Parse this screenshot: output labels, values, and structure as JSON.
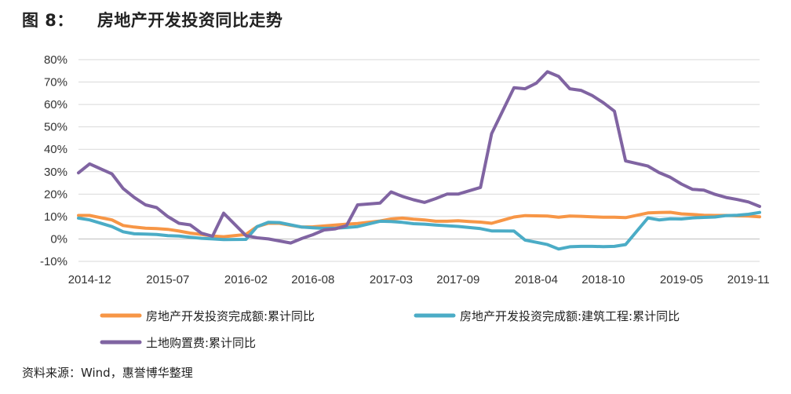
{
  "header": {
    "figure_label": "图 8：",
    "title": "房地产开发投资同比走势"
  },
  "source": "资料来源：Wind，惠誉博华整理",
  "chart_data": {
    "type": "line",
    "title": "房地产开发投资同比走势",
    "xlabel": "",
    "ylabel": "",
    "ylim": [
      -10,
      80
    ],
    "yticks": [
      -10,
      0,
      10,
      20,
      30,
      40,
      50,
      60,
      70,
      80
    ],
    "ytick_labels": [
      "-10%",
      "0%",
      "10%",
      "20%",
      "30%",
      "40%",
      "50%",
      "60%",
      "70%",
      "80%"
    ],
    "x_range": [
      "2014-11",
      "2019-12"
    ],
    "xtick_labels": [
      "2014-12",
      "2015-07",
      "2016-02",
      "2016-08",
      "2017-03",
      "2017-09",
      "2018-04",
      "2018-10",
      "2019-05",
      "2019-11"
    ],
    "grid": "horizontal",
    "legend_position": "bottom",
    "x": [
      "2014-11",
      "2014-12",
      "2015-02",
      "2015-03",
      "2015-04",
      "2015-05",
      "2015-06",
      "2015-07",
      "2015-08",
      "2015-09",
      "2015-10",
      "2015-11",
      "2015-12",
      "2016-02",
      "2016-03",
      "2016-04",
      "2016-05",
      "2016-06",
      "2016-07",
      "2016-08",
      "2016-09",
      "2016-10",
      "2016-11",
      "2016-12",
      "2017-02",
      "2017-03",
      "2017-04",
      "2017-05",
      "2017-06",
      "2017-07",
      "2017-08",
      "2017-09",
      "2017-10",
      "2017-11",
      "2017-12",
      "2018-02",
      "2018-03",
      "2018-04",
      "2018-05",
      "2018-06",
      "2018-07",
      "2018-08",
      "2018-09",
      "2018-10",
      "2018-11",
      "2018-12",
      "2019-02",
      "2019-03",
      "2019-04",
      "2019-05",
      "2019-06",
      "2019-07",
      "2019-08",
      "2019-09",
      "2019-10",
      "2019-11",
      "2019-12"
    ],
    "series": [
      {
        "name": "房地产开发投资完成额:累计同比",
        "color": "#F79646",
        "values": [
          10.5,
          10.5,
          8.5,
          6.0,
          5.3,
          4.8,
          4.6,
          4.3,
          3.5,
          2.6,
          2.0,
          1.3,
          1.0,
          2.0,
          5.5,
          7.0,
          7.0,
          6.1,
          5.3,
          5.4,
          5.8,
          6.2,
          6.6,
          6.9,
          8.0,
          8.9,
          9.3,
          8.8,
          8.5,
          7.9,
          7.9,
          8.1,
          7.8,
          7.5,
          7.0,
          9.8,
          10.4,
          10.3,
          10.2,
          9.7,
          10.2,
          10.1,
          9.9,
          9.7,
          9.7,
          9.5,
          11.6,
          11.8,
          11.9,
          11.2,
          10.9,
          10.6,
          10.5,
          10.5,
          10.3,
          10.2,
          9.9
        ]
      },
      {
        "name": "房地产开发投资完成额:建筑工程:累计同比",
        "color": "#4BACC6",
        "values": [
          9.3,
          8.5,
          5.5,
          3.2,
          2.3,
          2.2,
          2.0,
          1.5,
          1.3,
          0.8,
          0.3,
          0.0,
          -0.3,
          -0.2,
          5.5,
          7.4,
          7.3,
          6.3,
          5.3,
          5.0,
          4.7,
          4.8,
          5.1,
          5.5,
          7.9,
          7.8,
          7.4,
          6.8,
          6.6,
          6.2,
          5.9,
          5.6,
          5.1,
          4.6,
          3.6,
          3.5,
          -0.5,
          -1.5,
          -2.5,
          -4.5,
          -3.5,
          -3.3,
          -3.3,
          -3.4,
          -3.3,
          -2.5,
          9.4,
          8.5,
          9.0,
          8.9,
          9.4,
          9.6,
          9.8,
          10.4,
          10.6,
          11.0,
          11.8
        ]
      },
      {
        "name": "土地购置费:累计同比",
        "color": "#8064A2",
        "values": [
          29.5,
          33.5,
          29.0,
          22.5,
          18.5,
          15.2,
          14.0,
          10.0,
          7.0,
          6.3,
          2.6,
          1.2,
          11.5,
          1.5,
          0.5,
          0.0,
          -0.9,
          -1.8,
          0.2,
          1.9,
          4.0,
          4.5,
          5.9,
          15.2,
          16.0,
          21.0,
          19.0,
          17.5,
          16.3,
          18.0,
          20.0,
          20.0,
          21.5,
          23.0,
          47.0,
          67.5,
          67.0,
          69.5,
          74.6,
          72.5,
          67.0,
          66.3,
          64.0,
          60.8,
          57.0,
          34.8,
          32.5,
          29.6,
          27.5,
          24.5,
          22.1,
          21.8,
          19.9,
          18.5,
          17.6,
          16.5,
          14.5
        ]
      }
    ]
  }
}
